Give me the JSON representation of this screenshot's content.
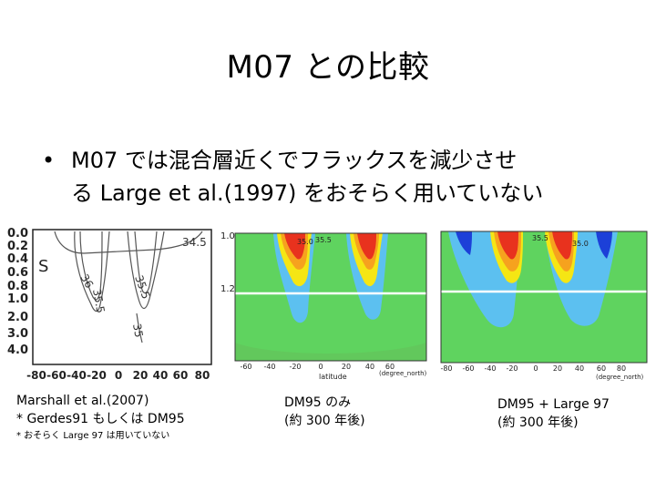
{
  "slide": {
    "title": "M07 との比較",
    "bullet_line1": "M07 では混合層近くでフラックスを減少させ",
    "bullet_line2": "る Large et al.(1997) をおそらく用いていない"
  },
  "figure_left": {
    "panel_label": "S",
    "y_ticks": [
      "0.0",
      "0.2",
      "0.4",
      "0.6",
      "0.8",
      "1.0",
      "2.0",
      "3.0",
      "4.0"
    ],
    "x_ticks": [
      "-80",
      "-60",
      "-40",
      "-20",
      "0",
      "20",
      "40",
      "60",
      "80"
    ],
    "contour_labels": [
      "34.5",
      "35.5",
      "36",
      "35.5",
      "35"
    ]
  },
  "figure_mid": {
    "y_ticks": [
      "1.0",
      "1.2"
    ],
    "x_ticks": [
      "-60",
      "-40",
      "-20",
      "0",
      "20",
      "40",
      "60"
    ],
    "x_label": "latitude",
    "x_unit": "(degree_north)",
    "contour_labels": [
      "35.0",
      "35.5"
    ]
  },
  "figure_right": {
    "x_ticks": [
      "-80",
      "-60",
      "-40",
      "-20",
      "0",
      "20",
      "40",
      "60",
      "80"
    ],
    "x_unit": "(degree_north)",
    "contour_labels": [
      "35.5",
      "35.0"
    ]
  },
  "captions": {
    "left_line1": "Marshall et al.(2007)",
    "left_line2": "* Gerdes91 もしくは DM95",
    "left_note": "* おそらく Large 97 は用いていない",
    "mid_line1": "DM95 のみ",
    "mid_line2": "(約 300 年後)",
    "right_line1": "DM95 + Large 97",
    "right_line2": "(約 300 年後)"
  },
  "colors": {
    "green": "#5fd35f",
    "yellow": "#f5e614",
    "orange": "#f6a21e",
    "red": "#e8321e",
    "lightblue": "#5cc0f0",
    "blue": "#1c40d8"
  }
}
